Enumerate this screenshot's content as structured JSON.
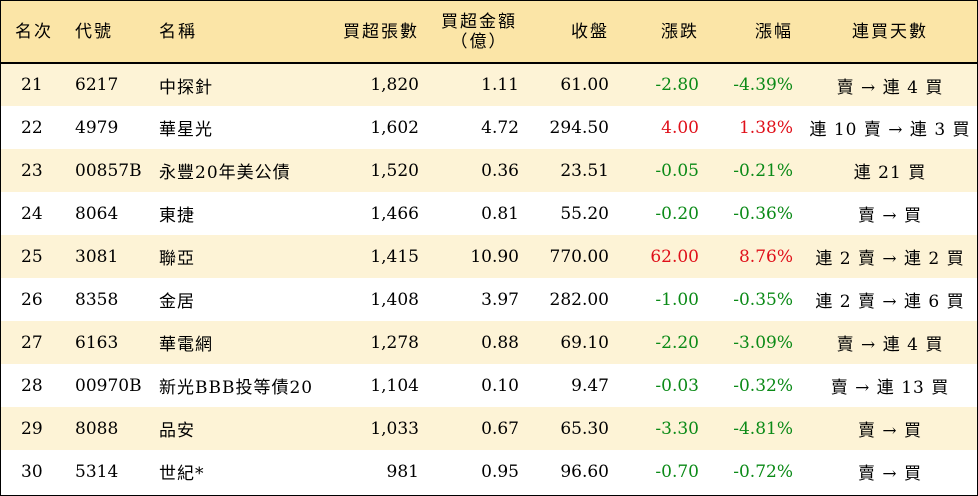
{
  "headers": {
    "rank": "名次",
    "code": "代號",
    "name": "名稱",
    "net_lots": "買超張數",
    "net_amount_line1": "買超金額",
    "net_amount_line2": "（億）",
    "close": "收盤",
    "change": "漲跌",
    "change_pct": "漲幅",
    "streak": "連買天數"
  },
  "colors": {
    "header_bg": "#fbe5a7",
    "stripe_bg": "#fdf3d6",
    "up": "#e0101a",
    "down": "#0b8a17"
  },
  "rows": [
    {
      "rank": "21",
      "code": "6217",
      "name": "中探針",
      "net_lots": "1,820",
      "net_amount": "1.11",
      "close": "61.00",
      "change": "-2.80",
      "change_pct": "-4.39%",
      "streak": "賣 → 連 4 買",
      "direction": "down"
    },
    {
      "rank": "22",
      "code": "4979",
      "name": "華星光",
      "net_lots": "1,602",
      "net_amount": "4.72",
      "close": "294.50",
      "change": "4.00",
      "change_pct": "1.38%",
      "streak": "連 10 賣 → 連 3 買",
      "direction": "up"
    },
    {
      "rank": "23",
      "code": "00857B",
      "name": "永豐20年美公債",
      "net_lots": "1,520",
      "net_amount": "0.36",
      "close": "23.51",
      "change": "-0.05",
      "change_pct": "-0.21%",
      "streak": "連 21 買",
      "direction": "down"
    },
    {
      "rank": "24",
      "code": "8064",
      "name": "東捷",
      "net_lots": "1,466",
      "net_amount": "0.81",
      "close": "55.20",
      "change": "-0.20",
      "change_pct": "-0.36%",
      "streak": "賣 → 買",
      "direction": "down"
    },
    {
      "rank": "25",
      "code": "3081",
      "name": "聯亞",
      "net_lots": "1,415",
      "net_amount": "10.90",
      "close": "770.00",
      "change": "62.00",
      "change_pct": "8.76%",
      "streak": "連 2 賣 → 連 2 買",
      "direction": "up"
    },
    {
      "rank": "26",
      "code": "8358",
      "name": "金居",
      "net_lots": "1,408",
      "net_amount": "3.97",
      "close": "282.00",
      "change": "-1.00",
      "change_pct": "-0.35%",
      "streak": "連 2 賣 → 連 6 買",
      "direction": "down"
    },
    {
      "rank": "27",
      "code": "6163",
      "name": "華電網",
      "net_lots": "1,278",
      "net_amount": "0.88",
      "close": "69.10",
      "change": "-2.20",
      "change_pct": "-3.09%",
      "streak": "賣 → 連 4 買",
      "direction": "down"
    },
    {
      "rank": "28",
      "code": "00970B",
      "name": "新光BBB投等債20",
      "net_lots": "1,104",
      "net_amount": "0.10",
      "close": "9.47",
      "change": "-0.03",
      "change_pct": "-0.32%",
      "streak": "賣 → 連 13 買",
      "direction": "down"
    },
    {
      "rank": "29",
      "code": "8088",
      "name": "品安",
      "net_lots": "1,033",
      "net_amount": "0.67",
      "close": "65.30",
      "change": "-3.30",
      "change_pct": "-4.81%",
      "streak": "賣 → 買",
      "direction": "down"
    },
    {
      "rank": "30",
      "code": "5314",
      "name": "世紀*",
      "net_lots": "981",
      "net_amount": "0.95",
      "close": "96.60",
      "change": "-0.70",
      "change_pct": "-0.72%",
      "streak": "賣 → 買",
      "direction": "down"
    }
  ]
}
